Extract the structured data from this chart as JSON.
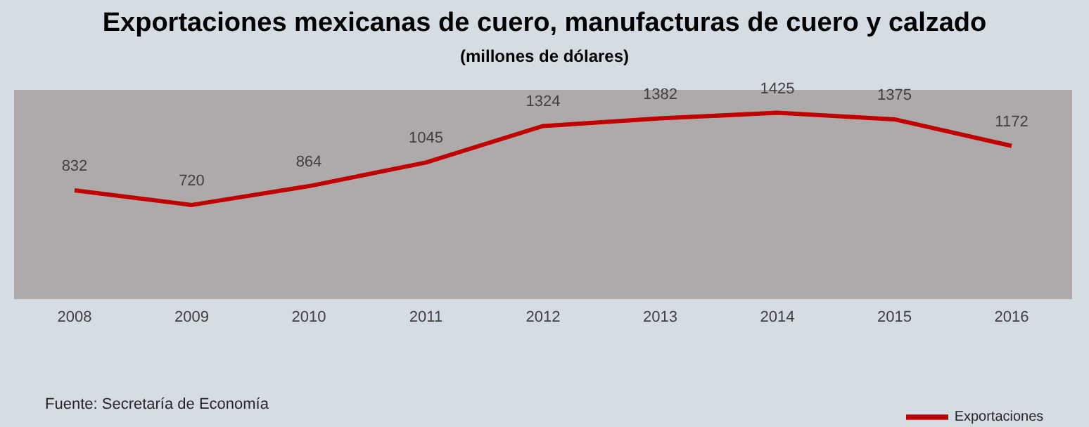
{
  "chart_data": {
    "type": "line",
    "title": "Exportaciones mexicanas de cuero, manufacturas de cuero y calzado",
    "subtitle": "(millones de dólares)",
    "categories": [
      "2008",
      "2009",
      "2010",
      "2011",
      "2012",
      "2013",
      "2014",
      "2015",
      "2016"
    ],
    "series": [
      {
        "name": "Exportaciones",
        "color": "#c00000",
        "values": [
          832,
          720,
          864,
          1045,
          1324,
          1382,
          1425,
          1375,
          1172
        ]
      }
    ],
    "ylim": [
      0,
      1600
    ],
    "tick_labels": "x",
    "data_labels": true,
    "grid": false,
    "legend": "bottom right",
    "marker": "none",
    "line_style": "solid",
    "annotations": [
      "Fuente: Secretaría de Economía"
    ]
  }
}
